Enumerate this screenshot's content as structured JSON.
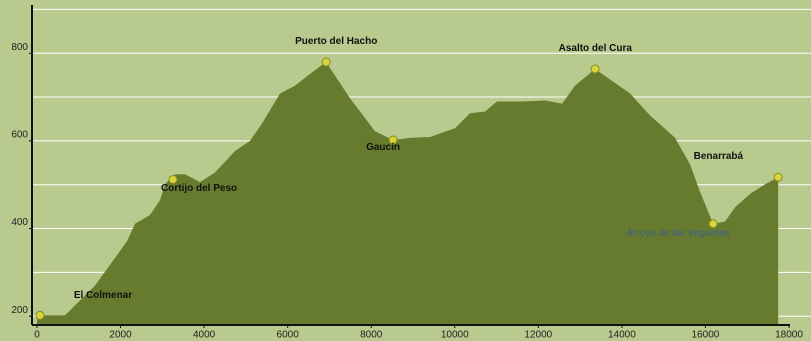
{
  "chart_data": {
    "type": "area",
    "x": [
      0,
      670,
      1389,
      2155,
      2346,
      2705,
      2945,
      3064,
      3304,
      3543,
      3902,
      4261,
      4740,
      5099,
      5387,
      5818,
      6177,
      6536,
      6920,
      7493,
      8092,
      8523,
      8930,
      9408,
      10007,
      10366,
      10725,
      11012,
      11563,
      12162,
      12569,
      12880,
      13359,
      14196,
      14675,
      15274,
      15633,
      15873,
      16184,
      16471,
      16711,
      17070,
      17429,
      17740
    ],
    "values": [
      202,
      202,
      270,
      371,
      411,
      431,
      465,
      501,
      524,
      524,
      506,
      528,
      577,
      600,
      640,
      708,
      726,
      753,
      780,
      697,
      622,
      602,
      607,
      609,
      629,
      663,
      667,
      690,
      690,
      692,
      685,
      726,
      764,
      708,
      658,
      607,
      546,
      483,
      411,
      416,
      449,
      479,
      501,
      517
    ],
    "color": "#677b2f",
    "waypoints": [
      {
        "name": "El Colmenar",
        "x": 72,
        "value": 202
      },
      {
        "name": "Cortijo del Peso",
        "x": 3256,
        "value": 512
      },
      {
        "name": "Puerto del Hacho",
        "x": 6920,
        "value": 780
      },
      {
        "name": "Gaucín",
        "x": 8523,
        "value": 602
      },
      {
        "name": "Asalto del Cura",
        "x": 13359,
        "value": 764
      },
      {
        "name": "Arroyo de las Veguetas",
        "x": 16184,
        "value": 411
      },
      {
        "name": "Benarrabá",
        "x": 17740,
        "value": 517
      }
    ],
    "xlim": [
      0,
      18000
    ],
    "xticks": [
      0,
      2000,
      4000,
      6000,
      8000,
      10000,
      12000,
      14000,
      16000,
      18000
    ],
    "ylim": [
      180,
      910
    ],
    "yticks": [
      200,
      400,
      600,
      800
    ],
    "ygrid": [
      200,
      300,
      400,
      500,
      600,
      700,
      800,
      900
    ],
    "grid": true
  }
}
